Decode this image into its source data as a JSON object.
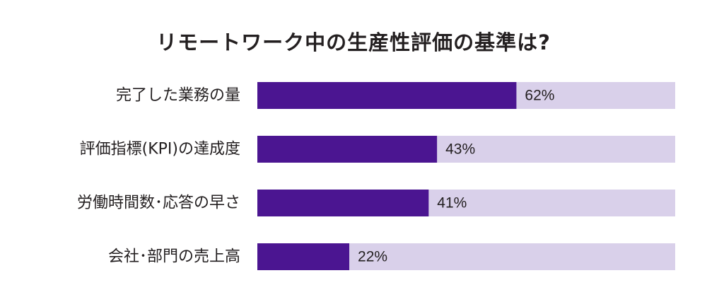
{
  "chart_data": {
    "type": "bar",
    "orientation": "horizontal",
    "title": "リモートワーク中の生産性評価の基準は?",
    "categories": [
      "完了した業務の量",
      "評価指標(KPI)の達成度",
      "労働時間数･応答の早さ",
      "会社･部門の売上高"
    ],
    "values": [
      62,
      43,
      41,
      22
    ],
    "value_labels": [
      "62%",
      "43%",
      "41%",
      "22%"
    ],
    "unit": "%",
    "xlim": [
      0,
      100
    ],
    "grid": false,
    "legend": "none"
  },
  "colors": {
    "bar": "#4b1591",
    "track": "#d9d0ea",
    "text": "#231f20",
    "background": "#ffffff"
  }
}
